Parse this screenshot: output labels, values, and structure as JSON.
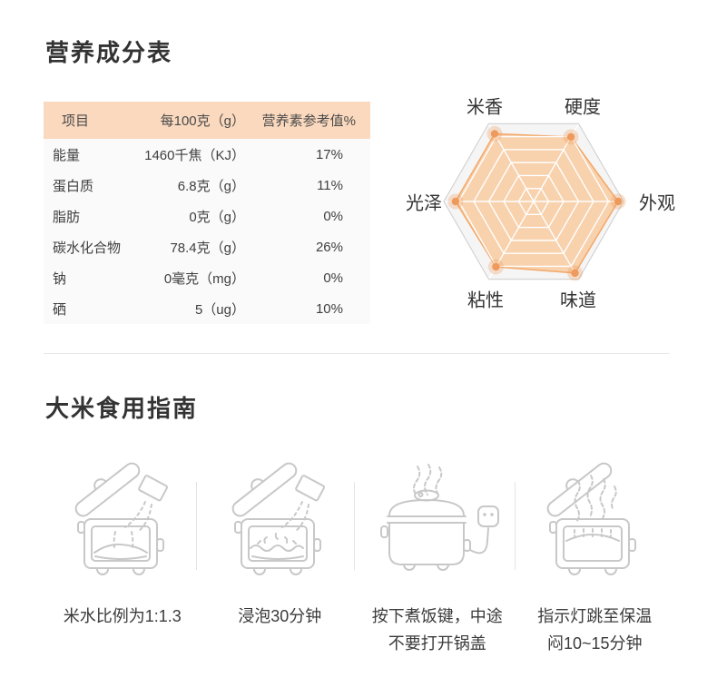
{
  "nutrition_section": {
    "title": "营养成分表",
    "table": {
      "headers": [
        "项目",
        "每100克（g）",
        "营养素参考值%"
      ],
      "rows": [
        [
          "能量",
          "1460千焦（KJ）",
          "17%"
        ],
        [
          "蛋白质",
          "6.8克（g）",
          "11%"
        ],
        [
          "脂肪",
          "0克（g）",
          "0%"
        ],
        [
          "碳水化合物",
          "78.4克（g）",
          "26%"
        ],
        [
          "钠",
          "0毫克（mg）",
          "0%"
        ],
        [
          "硒",
          "5（ug）",
          "10%"
        ]
      ],
      "header_bg": "#fad9be",
      "body_bg": "#fafafa"
    }
  },
  "chart_data": {
    "type": "radar",
    "levels": 6,
    "max": 100,
    "axes": [
      {
        "label": "米香",
        "angle": 120,
        "value": 87
      },
      {
        "label": "硬度",
        "angle": 60,
        "value": 83
      },
      {
        "label": "外观",
        "angle": 0,
        "value": 94
      },
      {
        "label": "味道",
        "angle": 300,
        "value": 92
      },
      {
        "label": "粘性",
        "angle": 240,
        "value": 84
      },
      {
        "label": "光泽",
        "angle": 180,
        "value": 87
      }
    ],
    "colors": {
      "fill": "#f8cfa9",
      "stroke": "#f3a869",
      "dot": "#ef9a5d",
      "dot_halo": "rgba(240,154,93,0.3)",
      "grid_bg": "#f5f5f5",
      "grid_border": "#cccccc",
      "grid_line": "#ffffff"
    }
  },
  "guide_section": {
    "title": "大米食用指南",
    "steps": [
      {
        "caption_lines": [
          "米水比例为1:1.3"
        ]
      },
      {
        "caption_lines": [
          "浸泡30分钟"
        ]
      },
      {
        "caption_lines": [
          "按下煮饭键，中途",
          "不要打开锅盖"
        ]
      },
      {
        "caption_lines": [
          "指示灯跳至保温",
          "闷10~15分钟"
        ]
      }
    ]
  }
}
